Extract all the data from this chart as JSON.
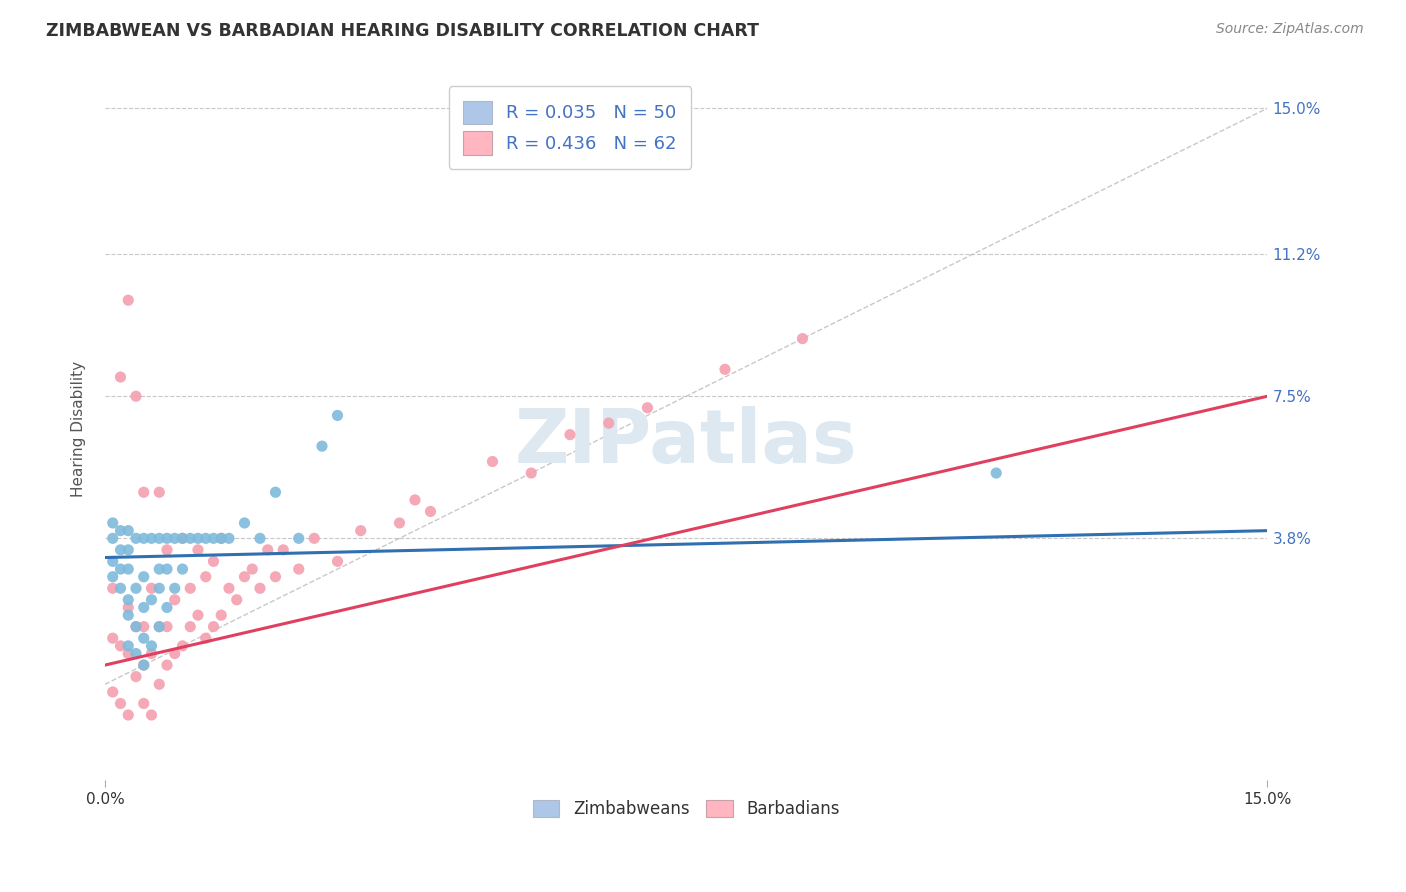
{
  "title": "ZIMBABWEAN VS BARBADIAN HEARING DISABILITY CORRELATION CHART",
  "source": "Source: ZipAtlas.com",
  "ylabel": "Hearing Disability",
  "x_min": 0.0,
  "x_max": 0.15,
  "y_min": -0.025,
  "y_max": 0.158,
  "yticks": [
    0.038,
    0.075,
    0.112,
    0.15
  ],
  "ytick_labels": [
    "3.8%",
    "7.5%",
    "11.2%",
    "15.0%"
  ],
  "xticks": [
    0.0,
    0.15
  ],
  "xtick_labels": [
    "0.0%",
    "15.0%"
  ],
  "legend_labels": [
    "Zimbabweans",
    "Barbadians"
  ],
  "blue_color": "#7fbadb",
  "pink_color": "#f4a0b0",
  "blue_line_color": "#3070b0",
  "pink_line_color": "#e04060",
  "blue_fill": "#aec7e8",
  "pink_fill": "#ffb6c1",
  "watermark": "ZIPatlas",
  "watermark_color": "#dde8f0",
  "background_color": "#ffffff",
  "grid_color": "#c8c8c8",
  "title_color": "#333333",
  "axis_label_color": "#555555",
  "right_tick_color": "#4472c4",
  "zimbabwe_R": 0.035,
  "zimbabwe_N": 50,
  "barbadian_R": 0.436,
  "barbadian_N": 62,
  "zim_trend_x0": 0.0,
  "zim_trend_y0": 0.033,
  "zim_trend_x1": 0.15,
  "zim_trend_y1": 0.04,
  "bar_trend_x0": 0.0,
  "bar_trend_y0": 0.005,
  "bar_trend_x1": 0.15,
  "bar_trend_y1": 0.075,
  "zimbabwe_x": [
    0.001,
    0.001,
    0.001,
    0.001,
    0.002,
    0.002,
    0.002,
    0.002,
    0.003,
    0.003,
    0.003,
    0.003,
    0.003,
    0.003,
    0.004,
    0.004,
    0.004,
    0.004,
    0.005,
    0.005,
    0.005,
    0.005,
    0.005,
    0.006,
    0.006,
    0.006,
    0.007,
    0.007,
    0.007,
    0.007,
    0.008,
    0.008,
    0.008,
    0.009,
    0.009,
    0.01,
    0.01,
    0.011,
    0.012,
    0.013,
    0.014,
    0.015,
    0.016,
    0.018,
    0.02,
    0.022,
    0.025,
    0.028,
    0.03,
    0.115
  ],
  "zimbabwe_y": [
    0.028,
    0.032,
    0.038,
    0.042,
    0.025,
    0.03,
    0.035,
    0.04,
    0.01,
    0.018,
    0.022,
    0.03,
    0.035,
    0.04,
    0.008,
    0.015,
    0.025,
    0.038,
    0.005,
    0.012,
    0.02,
    0.028,
    0.038,
    0.01,
    0.022,
    0.038,
    0.015,
    0.025,
    0.03,
    0.038,
    0.02,
    0.03,
    0.038,
    0.025,
    0.038,
    0.03,
    0.038,
    0.038,
    0.038,
    0.038,
    0.038,
    0.038,
    0.038,
    0.042,
    0.038,
    0.05,
    0.038,
    0.062,
    0.07,
    0.055
  ],
  "barbadian_x": [
    0.001,
    0.001,
    0.001,
    0.002,
    0.002,
    0.002,
    0.003,
    0.003,
    0.003,
    0.003,
    0.004,
    0.004,
    0.004,
    0.005,
    0.005,
    0.005,
    0.005,
    0.006,
    0.006,
    0.006,
    0.007,
    0.007,
    0.007,
    0.008,
    0.008,
    0.008,
    0.009,
    0.009,
    0.01,
    0.01,
    0.011,
    0.011,
    0.012,
    0.012,
    0.013,
    0.013,
    0.014,
    0.014,
    0.015,
    0.015,
    0.016,
    0.017,
    0.018,
    0.019,
    0.02,
    0.021,
    0.022,
    0.023,
    0.025,
    0.027,
    0.03,
    0.033,
    0.038,
    0.04,
    0.042,
    0.05,
    0.055,
    0.06,
    0.065,
    0.07,
    0.08,
    0.09
  ],
  "barbadian_y": [
    -0.002,
    0.012,
    0.025,
    -0.005,
    0.01,
    0.08,
    -0.008,
    0.008,
    0.02,
    0.1,
    0.002,
    0.015,
    0.075,
    -0.005,
    0.005,
    0.015,
    0.05,
    -0.008,
    0.008,
    0.025,
    0.0,
    0.015,
    0.05,
    0.005,
    0.015,
    0.035,
    0.008,
    0.022,
    0.01,
    0.038,
    0.015,
    0.025,
    0.018,
    0.035,
    0.012,
    0.028,
    0.015,
    0.032,
    0.018,
    0.038,
    0.025,
    0.022,
    0.028,
    0.03,
    0.025,
    0.035,
    0.028,
    0.035,
    0.03,
    0.038,
    0.032,
    0.04,
    0.042,
    0.048,
    0.045,
    0.058,
    0.055,
    0.065,
    0.068,
    0.072,
    0.082,
    0.09
  ]
}
